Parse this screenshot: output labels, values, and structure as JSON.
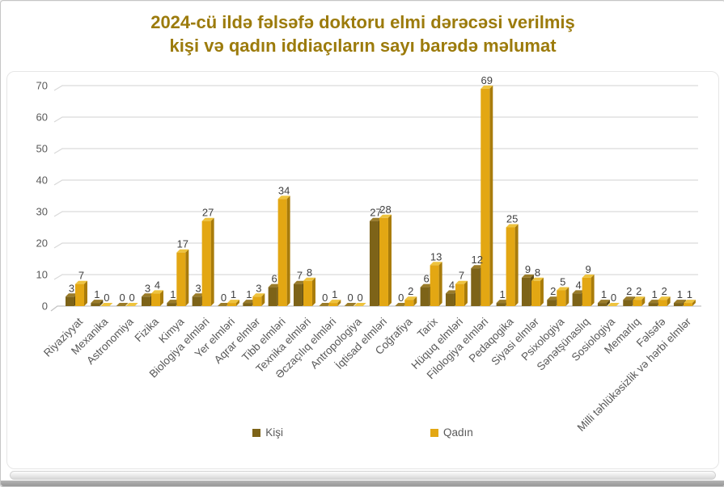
{
  "window": {
    "background": "#ffffff",
    "frame_color": "#c6c6c6"
  },
  "title": {
    "line1": "2024-cü ildə fəlsəfə doktoru elmi dərəcəsi verilmiş",
    "line2": "kişi və qadın iddiaçıların sayı barədə məlumat",
    "color": "#9c7b0c"
  },
  "chart_data": {
    "type": "bar",
    "effect": "3d-grouped-columns",
    "title": "2024-cü ildə fəlsəfə doktoru elmi dərəcəsi verilmiş kişi və qadın iddiaçıların sayı barədə məlumat",
    "categories": [
      "Riyaziyyat",
      "Mexanika",
      "Astronomiya",
      "Fizika",
      "Kimya",
      "Biologiya elmləri",
      "Yer elmləri",
      "Aqrar elmlər",
      "Tibb elmləri",
      "Texnika elmləri",
      "Əczaçılıq elmləri",
      "Antropologiya",
      "İqtisad elmləri",
      "Coğrafiya",
      "Tarix",
      "Hüquq elmləri",
      "Filologiya elmləri",
      "Pedaqogika",
      "Siyasi elmlər",
      "Psixologiya",
      "Sənətşünaslıq",
      "Sosiologiya",
      "Memarlıq",
      "Fəlsəfə",
      "Milli təhlükəsizlik və hərbi elmlər"
    ],
    "series": [
      {
        "name": "Kişi",
        "color": "#7d6318",
        "top_color": "#9a7c2a",
        "side_color": "#5e4a0f",
        "values": [
          3,
          1,
          0,
          3,
          1,
          3,
          0,
          1,
          6,
          7,
          0,
          0,
          27,
          0,
          6,
          4,
          12,
          1,
          9,
          2,
          4,
          1,
          2,
          1,
          1
        ]
      },
      {
        "name": "Qadın",
        "color": "#e3a713",
        "top_color": "#eec33e",
        "side_color": "#a97c0b",
        "values": [
          7,
          0,
          0,
          4,
          17,
          27,
          1,
          3,
          34,
          8,
          1,
          0,
          28,
          2,
          13,
          7,
          69,
          25,
          8,
          5,
          9,
          0,
          2,
          2,
          1
        ]
      }
    ],
    "xlabel": "",
    "ylabel": "",
    "ylim": [
      0,
      70
    ],
    "yticks": [
      0,
      10,
      20,
      30,
      40,
      50,
      60,
      70
    ],
    "grid": true,
    "gridline_color": "#d9d9d9",
    "axis_color": "#c3c3c3",
    "tick_color": "#595959",
    "data_label_color": "#3f3f3f",
    "legend_position": "bottom"
  }
}
